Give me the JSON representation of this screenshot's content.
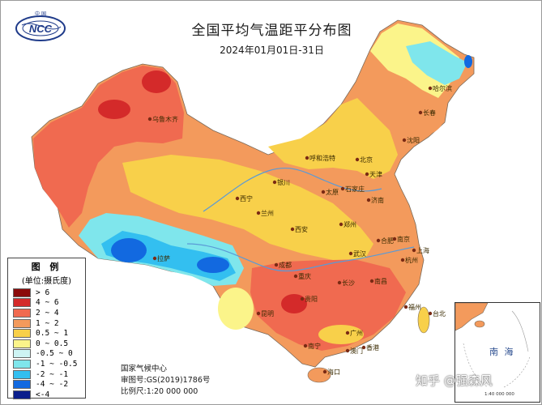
{
  "title": "全国平均气温距平分布图",
  "subtitle": "2024年01月01日-31日",
  "logo_text": "NCC",
  "logo_top_text": "中 国",
  "legend": {
    "title": "图 例",
    "unit": "(单位:摄氏度)",
    "items": [
      {
        "label": "> 6",
        "color": "#8b0a0a"
      },
      {
        "label": "4 ~ 6",
        "color": "#d42a2a"
      },
      {
        "label": "2 ~ 4",
        "color": "#f06a50"
      },
      {
        "label": "1 ~ 2",
        "color": "#f39a5c"
      },
      {
        "label": "0.5 ~ 1",
        "color": "#f8d04a"
      },
      {
        "label": "0 ~ 0.5",
        "color": "#fbf48a"
      },
      {
        "label": "-0.5 ~ 0",
        "color": "#cdf3f3"
      },
      {
        "label": "-1 ~ -0.5",
        "color": "#7fe6ec"
      },
      {
        "label": "-2 ~ -1",
        "color": "#33bff0"
      },
      {
        "label": "-4 ~ -2",
        "color": "#1269e0"
      },
      {
        "label": "<-4",
        "color": "#0a1e8c"
      }
    ]
  },
  "credits": {
    "org": "国家气候中心",
    "review": "审图号:GS(2019)1786号",
    "scale": "比例尺:1:20 000 000"
  },
  "inset": {
    "title": "南 海",
    "scale": "1:40 000 000"
  },
  "watermark": "知乎 @强森风",
  "cities": [
    {
      "name": "乌鲁木齐"
    },
    {
      "name": "哈尔滨"
    },
    {
      "name": "长春"
    },
    {
      "name": "沈阳"
    },
    {
      "name": "呼和浩特"
    },
    {
      "name": "北京"
    },
    {
      "name": "天津"
    },
    {
      "name": "石家庄"
    },
    {
      "name": "太原"
    },
    {
      "name": "银川"
    },
    {
      "name": "兰州"
    },
    {
      "name": "西宁"
    },
    {
      "name": "济南"
    },
    {
      "name": "郑州"
    },
    {
      "name": "西安"
    },
    {
      "name": "拉萨"
    },
    {
      "name": "成都"
    },
    {
      "name": "重庆"
    },
    {
      "name": "武汉"
    },
    {
      "name": "合肥"
    },
    {
      "name": "南京"
    },
    {
      "name": "上海"
    },
    {
      "name": "杭州"
    },
    {
      "name": "长沙"
    },
    {
      "name": "南昌"
    },
    {
      "name": "福州"
    },
    {
      "name": "台北"
    },
    {
      "name": "贵阳"
    },
    {
      "name": "昆明"
    },
    {
      "name": "南宁"
    },
    {
      "name": "广州"
    },
    {
      "name": "香港"
    },
    {
      "name": "澳门"
    },
    {
      "name": "海口"
    }
  ]
}
